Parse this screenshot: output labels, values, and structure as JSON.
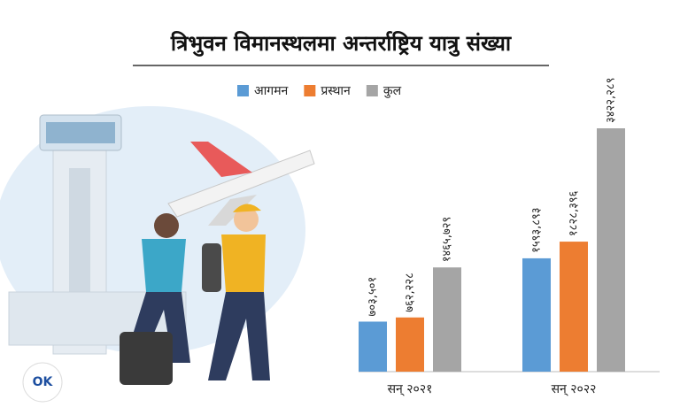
{
  "logo": "OK",
  "chart_data": {
    "type": "bar",
    "title": "त्रिभुवन विमानस्थलमा अन्तर्राष्ट्रिय यात्रु संख्या",
    "categories": [
      "सन् २०२१",
      "सन् २०२२"
    ],
    "series": [
      {
        "name": "आगमन",
        "color": "#5b9bd5",
        "values": [
          703501,
          1593893
        ],
        "value_labels": [
          "७०३,५०१",
          "१५९३,८९३"
        ]
      },
      {
        "name": "प्रस्थान",
        "color": "#ed7d31",
        "values": [
          762228,
          1828396
        ],
        "value_labels": [
          "७६२,२२८",
          "१८२८,३९६"
        ]
      },
      {
        "name": "कुल",
        "color": "#a5a5a5",
        "values": [
          1465729,
          3422289
        ],
        "value_labels": [
          "१४६५,७२९",
          "३४२२,२८९"
        ]
      }
    ]
  }
}
